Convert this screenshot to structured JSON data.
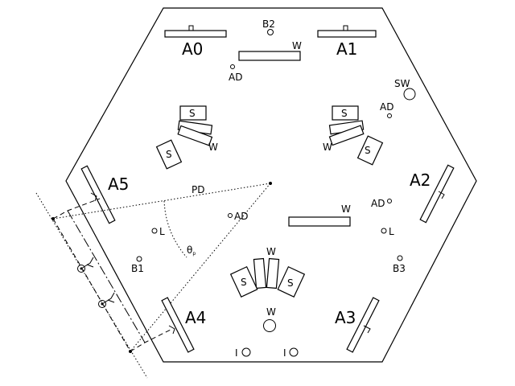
{
  "labels": {
    "a0": "A0",
    "a1": "A1",
    "a2": "A2",
    "a3": "A3",
    "a4": "A4",
    "a5": "A5",
    "b1": "B1",
    "b2": "B2",
    "b3": "B3",
    "sw": "SW",
    "w": "W",
    "s": "S",
    "ad": "AD",
    "l": "L",
    "i": "I",
    "pd": "PD",
    "theta": "θ",
    "theta_sub": "p"
  }
}
